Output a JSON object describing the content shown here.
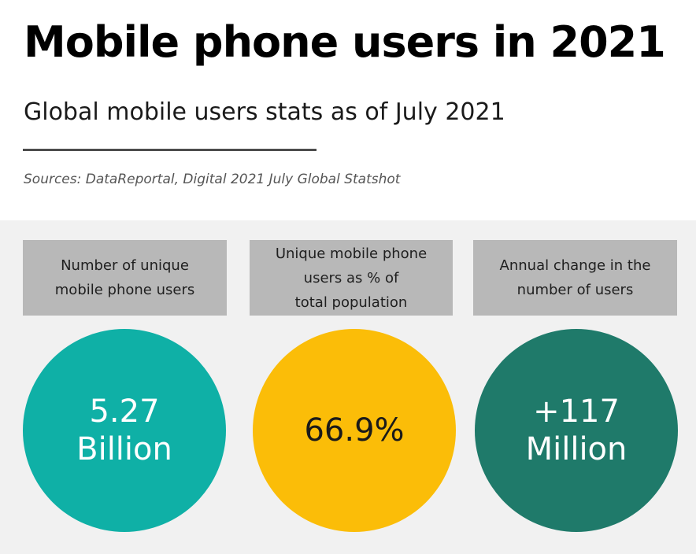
{
  "header": {
    "title": "Mobile phone users in 2021",
    "subtitle": "Global mobile users stats as of July 2021",
    "sources": "Sources: DataReportal, Digital 2021 July Global Statshot"
  },
  "stats": [
    {
      "label_lines": [
        "Number of unique",
        "mobile phone users"
      ],
      "value_lines": [
        "5.27",
        "Billion"
      ],
      "color": "#0fb0a6",
      "text_color": "#ffffff"
    },
    {
      "label_lines": [
        "Unique mobile phone",
        "users as % of",
        "total population"
      ],
      "value_lines": [
        "66.9%"
      ],
      "color": "#fbbd08",
      "text_color": "#1a1a1a"
    },
    {
      "label_lines": [
        "Annual change in the",
        "number of users"
      ],
      "value_lines": [
        "+117",
        "Million"
      ],
      "color": "#1f7a6a",
      "text_color": "#ffffff"
    }
  ],
  "colors": {
    "panel_background": "#f1f1f1",
    "label_background": "#b8b8b8",
    "rule": "#4d4d4d"
  }
}
